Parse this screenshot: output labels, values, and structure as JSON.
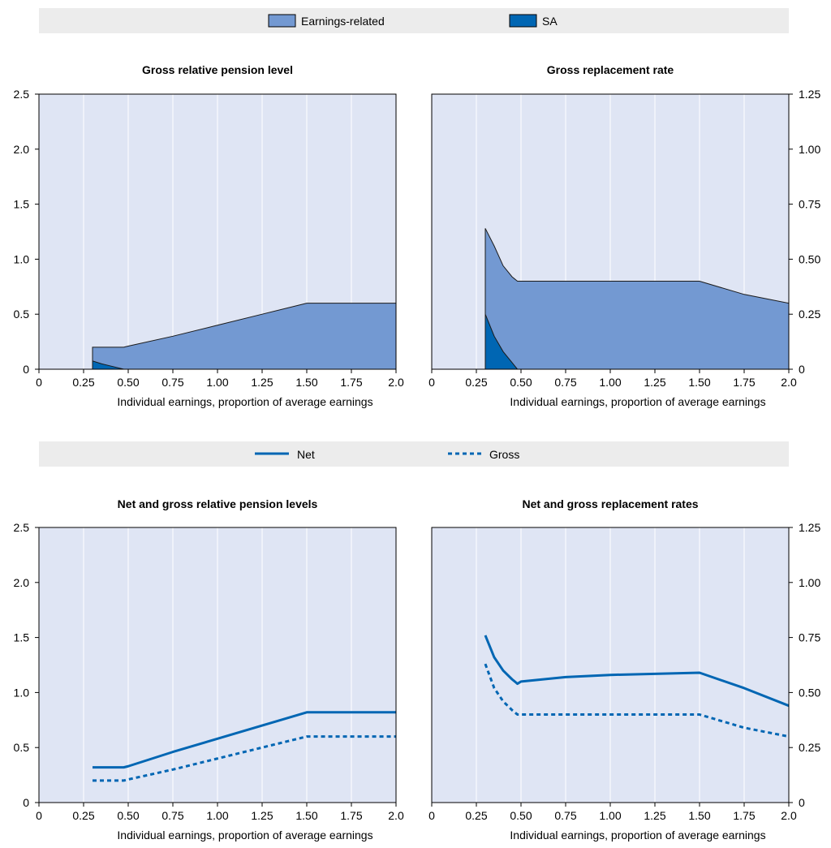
{
  "legends": {
    "top": [
      {
        "label": "Earnings-related",
        "color": "#7399d2"
      },
      {
        "label": "SA",
        "color": "#0066b3"
      }
    ],
    "bottom": [
      {
        "label": "Net",
        "style": "solid",
        "color": "#0066b3"
      },
      {
        "label": "Gross",
        "style": "dashed",
        "color": "#0066b3"
      }
    ]
  },
  "colors": {
    "plot_bg": "#dfe5f4",
    "legend_bg": "#ececec",
    "earnings_related": "#7399d2",
    "sa": "#0066b3",
    "line": "#0066b3"
  },
  "chart_data": [
    {
      "type": "area",
      "title": "Gross relative pension level",
      "xlabel": "Individual earnings, proportion of average earnings",
      "x_ticks": [
        "0",
        "0.25",
        "0.50",
        "0.75",
        "1.00",
        "1.25",
        "1.50",
        "1.75",
        "2.0"
      ],
      "y_ticks": [
        "0",
        "0.5",
        "1.0",
        "1.5",
        "2.0",
        "2.5"
      ],
      "y_axis_side": "left",
      "xlim": [
        0,
        2.0
      ],
      "ylim": [
        0,
        2.5
      ],
      "stacked": true,
      "series": [
        {
          "name": "SA",
          "x": [
            0.3,
            0.35,
            0.4,
            0.475,
            0.5,
            0.75,
            1.0,
            1.25,
            1.5,
            1.75,
            2.0
          ],
          "y": [
            0.075,
            0.05,
            0.03,
            0.0,
            0.0,
            0.0,
            0.0,
            0.0,
            0.0,
            0.0,
            0.0
          ]
        },
        {
          "name": "Earnings-related",
          "x": [
            0.3,
            0.35,
            0.4,
            0.475,
            0.5,
            0.75,
            1.0,
            1.25,
            1.5,
            1.75,
            2.0
          ],
          "y": [
            0.125,
            0.15,
            0.17,
            0.2,
            0.21,
            0.3,
            0.4,
            0.5,
            0.6,
            0.6,
            0.6
          ]
        }
      ]
    },
    {
      "type": "area",
      "title": "Gross replacement rate",
      "xlabel": "Individual earnings, proportion of average earnings",
      "x_ticks": [
        "0",
        "0.25",
        "0.50",
        "0.75",
        "1.00",
        "1.25",
        "1.50",
        "1.75",
        "2.0"
      ],
      "y_ticks": [
        "0",
        "0.25",
        "0.50",
        "0.75",
        "1.00",
        "1.25"
      ],
      "y_axis_side": "right",
      "xlim": [
        0,
        2.0
      ],
      "ylim": [
        0,
        1.25
      ],
      "stacked": true,
      "series": [
        {
          "name": "SA",
          "x": [
            0.3,
            0.35,
            0.4,
            0.45,
            0.48,
            0.5,
            1.0,
            1.5,
            1.75,
            2.0
          ],
          "y": [
            0.25,
            0.15,
            0.08,
            0.03,
            0.0,
            0.0,
            0.0,
            0.0,
            0.0,
            0.0
          ]
        },
        {
          "name": "Earnings-related",
          "x": [
            0.3,
            0.35,
            0.4,
            0.45,
            0.48,
            0.5,
            1.0,
            1.5,
            1.75,
            2.0
          ],
          "y": [
            0.39,
            0.41,
            0.39,
            0.39,
            0.4,
            0.4,
            0.4,
            0.4,
            0.34,
            0.3
          ]
        }
      ]
    },
    {
      "type": "line",
      "title": "Net and gross relative pension levels",
      "xlabel": "Individual earnings, proportion of average earnings",
      "x_ticks": [
        "0",
        "0.25",
        "0.50",
        "0.75",
        "1.00",
        "1.25",
        "1.50",
        "1.75",
        "2.0"
      ],
      "y_ticks": [
        "0",
        "0.5",
        "1.0",
        "1.5",
        "2.0",
        "2.5"
      ],
      "y_axis_side": "left",
      "xlim": [
        0,
        2.0
      ],
      "ylim": [
        0,
        2.5
      ],
      "series": [
        {
          "name": "Net",
          "style": "solid",
          "x": [
            0.3,
            0.475,
            0.5,
            0.75,
            1.0,
            1.25,
            1.5,
            1.75,
            2.0
          ],
          "y": [
            0.32,
            0.32,
            0.33,
            0.46,
            0.58,
            0.7,
            0.82,
            0.82,
            0.82
          ]
        },
        {
          "name": "Gross",
          "style": "dashed",
          "x": [
            0.3,
            0.475,
            0.5,
            0.75,
            1.0,
            1.25,
            1.5,
            1.75,
            2.0
          ],
          "y": [
            0.2,
            0.2,
            0.21,
            0.3,
            0.4,
            0.5,
            0.6,
            0.6,
            0.6
          ]
        }
      ]
    },
    {
      "type": "line",
      "title": "Net and gross replacement rates",
      "xlabel": "Individual earnings, proportion of average earnings",
      "x_ticks": [
        "0",
        "0.25",
        "0.50",
        "0.75",
        "1.00",
        "1.25",
        "1.50",
        "1.75",
        "2.0"
      ],
      "y_ticks": [
        "0",
        "0.25",
        "0.50",
        "0.75",
        "1.00",
        "1.25"
      ],
      "y_axis_side": "right",
      "xlim": [
        0,
        2.0
      ],
      "ylim": [
        0,
        1.25
      ],
      "series": [
        {
          "name": "Net",
          "style": "solid",
          "x": [
            0.3,
            0.35,
            0.4,
            0.45,
            0.48,
            0.5,
            0.75,
            1.0,
            1.25,
            1.5,
            1.75,
            2.0
          ],
          "y": [
            0.76,
            0.66,
            0.6,
            0.56,
            0.54,
            0.55,
            0.57,
            0.58,
            0.585,
            0.59,
            0.52,
            0.44
          ]
        },
        {
          "name": "Gross",
          "style": "dashed",
          "x": [
            0.3,
            0.35,
            0.4,
            0.45,
            0.48,
            0.5,
            0.75,
            1.0,
            1.25,
            1.5,
            1.75,
            2.0
          ],
          "y": [
            0.63,
            0.52,
            0.46,
            0.42,
            0.4,
            0.4,
            0.4,
            0.4,
            0.4,
            0.4,
            0.34,
            0.3
          ]
        }
      ]
    }
  ]
}
